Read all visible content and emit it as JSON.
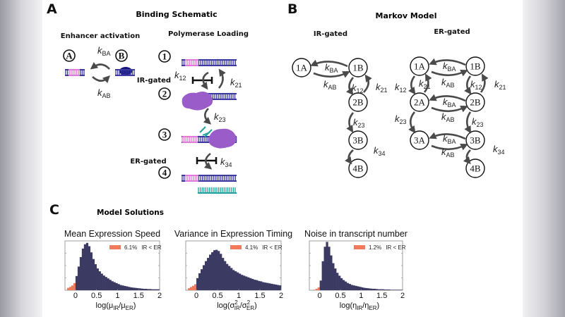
{
  "k_symbol": "k",
  "rates": {
    "BA": "BA",
    "AB": "AB",
    "12": "12",
    "21": "21",
    "23": "23",
    "34": "34"
  },
  "panel_a": {
    "letter": "A",
    "title": "Binding Schematic",
    "enhancer_title": "Enhancer activation",
    "polymerase_title": "Polymerase Loading",
    "enhancer_states": [
      "A",
      "B"
    ],
    "steps": [
      "1",
      "2",
      "3",
      "4"
    ],
    "ir_gated": "IR-gated",
    "er_gated": "ER-gated"
  },
  "panel_b": {
    "letter": "B",
    "title": "Markov Model",
    "ir_title": "IR-gated",
    "er_title": "ER-gated",
    "ir_nodes": [
      "1A",
      "1B",
      "2B",
      "3B",
      "4B"
    ],
    "er_nodes": [
      "1A",
      "1B",
      "2A",
      "2B",
      "3A",
      "3B",
      "4B"
    ]
  },
  "panel_c": {
    "letter": "C",
    "title": "Model Solutions"
  },
  "colors": {
    "bar": "#3b3a63",
    "below_zero": "#f07a5c",
    "dna": "#3c3aa0",
    "dna_pink": "#e07ad8",
    "polymerase": "#9a5cc8",
    "transcript": "#1fa39a",
    "arrow": "#4a4a4a"
  },
  "chart_data": [
    {
      "type": "bar",
      "subtype": "histogram",
      "title": "Mean Expression Speed",
      "xlabel_parts": [
        {
          "t": "log(μ",
          "s": "n"
        },
        {
          "t": "IR",
          "s": "sub"
        },
        {
          "t": "/μ",
          "s": "n"
        },
        {
          "t": "ER",
          "s": "sub"
        },
        {
          "t": ")",
          "s": "n"
        }
      ],
      "legend": {
        "value": "6.1%",
        "label": "IR < ER"
      },
      "xlim": [
        -0.25,
        2
      ],
      "xticks": [
        "0",
        "0.5",
        "1",
        "1.5",
        "2"
      ],
      "xtick_values": [
        0,
        0.5,
        1,
        1.5,
        2
      ],
      "bin_start": -0.2,
      "bin_width": 0.05,
      "peak_fraction": 0.96,
      "values": [
        0.05,
        0.07,
        0.1,
        0.15,
        0.3,
        0.5,
        0.7,
        0.88,
        0.97,
        1.0,
        0.93,
        0.8,
        0.66,
        0.55,
        0.46,
        0.4,
        0.35,
        0.31,
        0.28,
        0.25,
        0.22,
        0.19,
        0.17,
        0.15,
        0.13,
        0.11,
        0.1,
        0.09,
        0.08,
        0.07,
        0.06,
        0.055,
        0.05,
        0.045,
        0.04,
        0.035,
        0.03,
        0.03,
        0.025,
        0.025,
        0.02,
        0.02,
        0.02,
        0.02
      ]
    },
    {
      "type": "bar",
      "subtype": "histogram",
      "title": "Variance in Expression Timing",
      "xlabel_parts": [
        {
          "t": "log(σ",
          "s": "n"
        },
        {
          "t": "2",
          "s": "sup"
        },
        {
          "t": "IR",
          "s": "subx"
        },
        {
          "t": "/σ",
          "s": "n"
        },
        {
          "t": "2",
          "s": "sup"
        },
        {
          "t": "ER",
          "s": "subx"
        },
        {
          "t": ")",
          "s": "n"
        }
      ],
      "legend": {
        "value": "4.1%",
        "label": "IR < ER"
      },
      "xlim": [
        -0.25,
        2
      ],
      "xticks": [
        "0",
        "0.5",
        "1",
        "1.5",
        "2"
      ],
      "xtick_values": [
        0,
        0.5,
        1,
        1.5,
        2
      ],
      "bin_start": -0.2,
      "bin_width": 0.05,
      "peak_fraction": 0.82,
      "values": [
        0.05,
        0.08,
        0.11,
        0.15,
        0.3,
        0.42,
        0.52,
        0.62,
        0.72,
        0.8,
        0.88,
        0.94,
        0.99,
        1.0,
        0.97,
        0.9,
        0.8,
        0.72,
        0.65,
        0.6,
        0.55,
        0.5,
        0.47,
        0.44,
        0.41,
        0.38,
        0.36,
        0.34,
        0.32,
        0.3,
        0.28,
        0.26,
        0.25,
        0.23,
        0.22,
        0.2,
        0.19,
        0.18,
        0.17,
        0.16,
        0.15,
        0.14,
        0.13,
        0.12
      ]
    },
    {
      "type": "bar",
      "subtype": "histogram",
      "title": "Noise in transcript number",
      "xlabel_parts": [
        {
          "t": "log(η",
          "s": "n"
        },
        {
          "t": "IR",
          "s": "sub"
        },
        {
          "t": "/η",
          "s": "n"
        },
        {
          "t": "ER",
          "s": "sub"
        },
        {
          "t": ")",
          "s": "n"
        }
      ],
      "legend": {
        "value": "1.2%",
        "label": "IR < ER"
      },
      "xlim": [
        -0.25,
        2
      ],
      "xticks": [
        "0",
        "0.5",
        "1",
        "1.5",
        "2"
      ],
      "xtick_values": [
        0,
        0.5,
        1,
        1.5,
        2
      ],
      "bin_start": -0.2,
      "bin_width": 0.05,
      "peak_fraction": 0.98,
      "values": [
        0,
        0.01,
        0.03,
        0.06,
        0.2,
        0.6,
        0.9,
        1.0,
        0.9,
        0.72,
        0.56,
        0.45,
        0.36,
        0.3,
        0.25,
        0.21,
        0.18,
        0.15,
        0.13,
        0.11,
        0.1,
        0.09,
        0.08,
        0.07,
        0.06,
        0.05,
        0.045,
        0.04,
        0.035,
        0.03,
        0.03,
        0.025,
        0.02,
        0.02,
        0.02,
        0.015,
        0.015,
        0.015,
        0.01,
        0.01,
        0.01,
        0.01,
        0.01,
        0.01
      ]
    }
  ]
}
